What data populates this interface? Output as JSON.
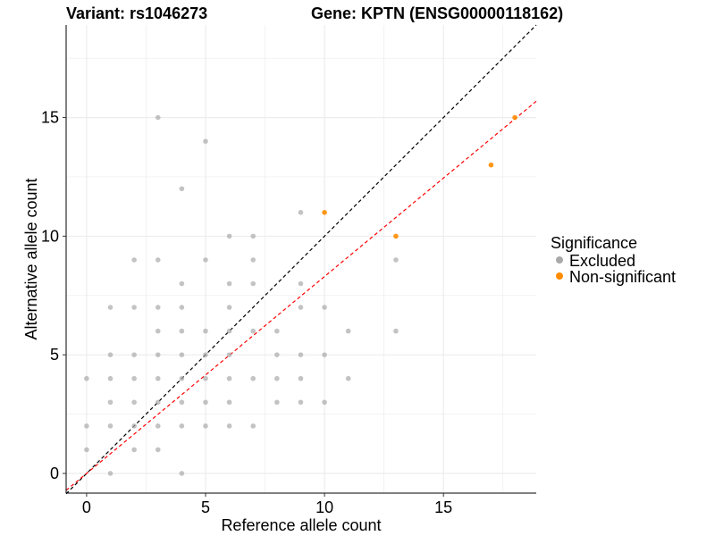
{
  "chart_data": {
    "type": "scatter",
    "title_left": "Variant: rs1046273",
    "title_right": "Gene: KPTN (ENSG00000118162)",
    "xlabel": "Reference allele count",
    "ylabel": "Alternative allele count",
    "xlim": [
      -0.86,
      18.9
    ],
    "ylim": [
      -0.83,
      18.9
    ],
    "xticks": [
      0,
      5,
      10,
      15
    ],
    "yticks": [
      0,
      5,
      10,
      15
    ],
    "grid": true,
    "legend": {
      "title": "Significance",
      "placement": "right",
      "entries": [
        {
          "label": "Excluded",
          "color": "#a9a9a9"
        },
        {
          "label": "Non-significant",
          "color": "#ff8c00"
        }
      ]
    },
    "reference_lines": [
      {
        "name": "identity",
        "slope": 1,
        "intercept": 0,
        "color": "#000000"
      },
      {
        "name": "fit",
        "slope": 0.83,
        "intercept": 0,
        "color": "#ff0000"
      }
    ],
    "series": [
      {
        "name": "Excluded",
        "color": "#a9a9a9",
        "points": [
          [
            3,
            15
          ],
          [
            5,
            14
          ],
          [
            4,
            12
          ],
          [
            9,
            11
          ],
          [
            6,
            10
          ],
          [
            7,
            10
          ],
          [
            2,
            9
          ],
          [
            3,
            9
          ],
          [
            5,
            9
          ],
          [
            7,
            9
          ],
          [
            13,
            9
          ],
          [
            4,
            8
          ],
          [
            6,
            8
          ],
          [
            7,
            8
          ],
          [
            9,
            8
          ],
          [
            1,
            7
          ],
          [
            2,
            7
          ],
          [
            3,
            7
          ],
          [
            4,
            7
          ],
          [
            6,
            7
          ],
          [
            9,
            7
          ],
          [
            10,
            7
          ],
          [
            3,
            6
          ],
          [
            4,
            6
          ],
          [
            5,
            6
          ],
          [
            6,
            6
          ],
          [
            7,
            6
          ],
          [
            8,
            6
          ],
          [
            11,
            6
          ],
          [
            13,
            6
          ],
          [
            1,
            5
          ],
          [
            2,
            5
          ],
          [
            3,
            5
          ],
          [
            4,
            5
          ],
          [
            5,
            5
          ],
          [
            6,
            5
          ],
          [
            8,
            5
          ],
          [
            9,
            5
          ],
          [
            10,
            5
          ],
          [
            0,
            4
          ],
          [
            1,
            4
          ],
          [
            2,
            4
          ],
          [
            3,
            4
          ],
          [
            4,
            4
          ],
          [
            5,
            4
          ],
          [
            6,
            4
          ],
          [
            7,
            4
          ],
          [
            8,
            4
          ],
          [
            9,
            4
          ],
          [
            11,
            4
          ],
          [
            1,
            3
          ],
          [
            2,
            3
          ],
          [
            3,
            3
          ],
          [
            4,
            3
          ],
          [
            5,
            3
          ],
          [
            6,
            3
          ],
          [
            8,
            3
          ],
          [
            9,
            3
          ],
          [
            10,
            3
          ],
          [
            0,
            2
          ],
          [
            1,
            2
          ],
          [
            2,
            2
          ],
          [
            3,
            2
          ],
          [
            4,
            2
          ],
          [
            5,
            2
          ],
          [
            6,
            2
          ],
          [
            7,
            2
          ],
          [
            0,
            1
          ],
          [
            2,
            1
          ],
          [
            3,
            1
          ],
          [
            1,
            0
          ],
          [
            4,
            0
          ]
        ]
      },
      {
        "name": "Non-significant",
        "color": "#ff8c00",
        "points": [
          [
            10,
            11
          ],
          [
            13,
            10
          ],
          [
            17,
            13
          ],
          [
            18,
            15
          ]
        ]
      }
    ]
  }
}
